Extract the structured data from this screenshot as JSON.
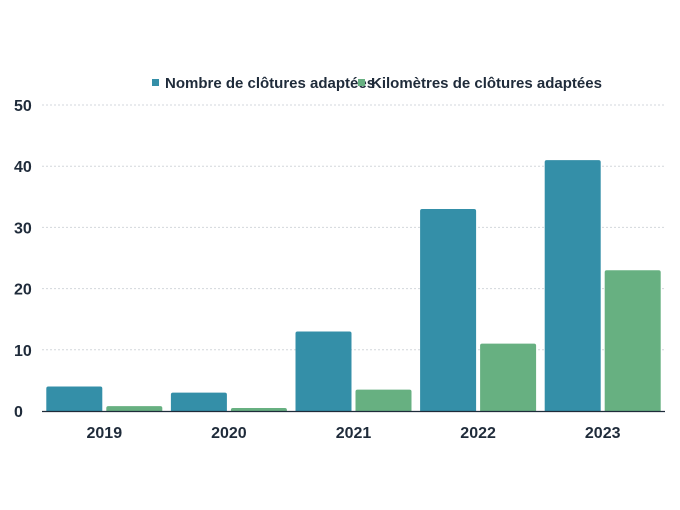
{
  "chart_data": {
    "type": "bar",
    "categories": [
      "2019",
      "2020",
      "2021",
      "2022",
      "2023"
    ],
    "series": [
      {
        "name": "Nombre de clôtures adaptées",
        "values": [
          4,
          3,
          13,
          33,
          41
        ],
        "color": "#348fa8"
      },
      {
        "name": "Kilomètres de clôtures adaptées",
        "values": [
          0.8,
          0.5,
          3.5,
          11,
          23
        ],
        "color": "#67b081"
      }
    ],
    "ylim": [
      0,
      50
    ],
    "yticks": [
      0,
      10,
      20,
      30,
      40,
      50
    ],
    "grid": true,
    "legend": "top-center"
  }
}
